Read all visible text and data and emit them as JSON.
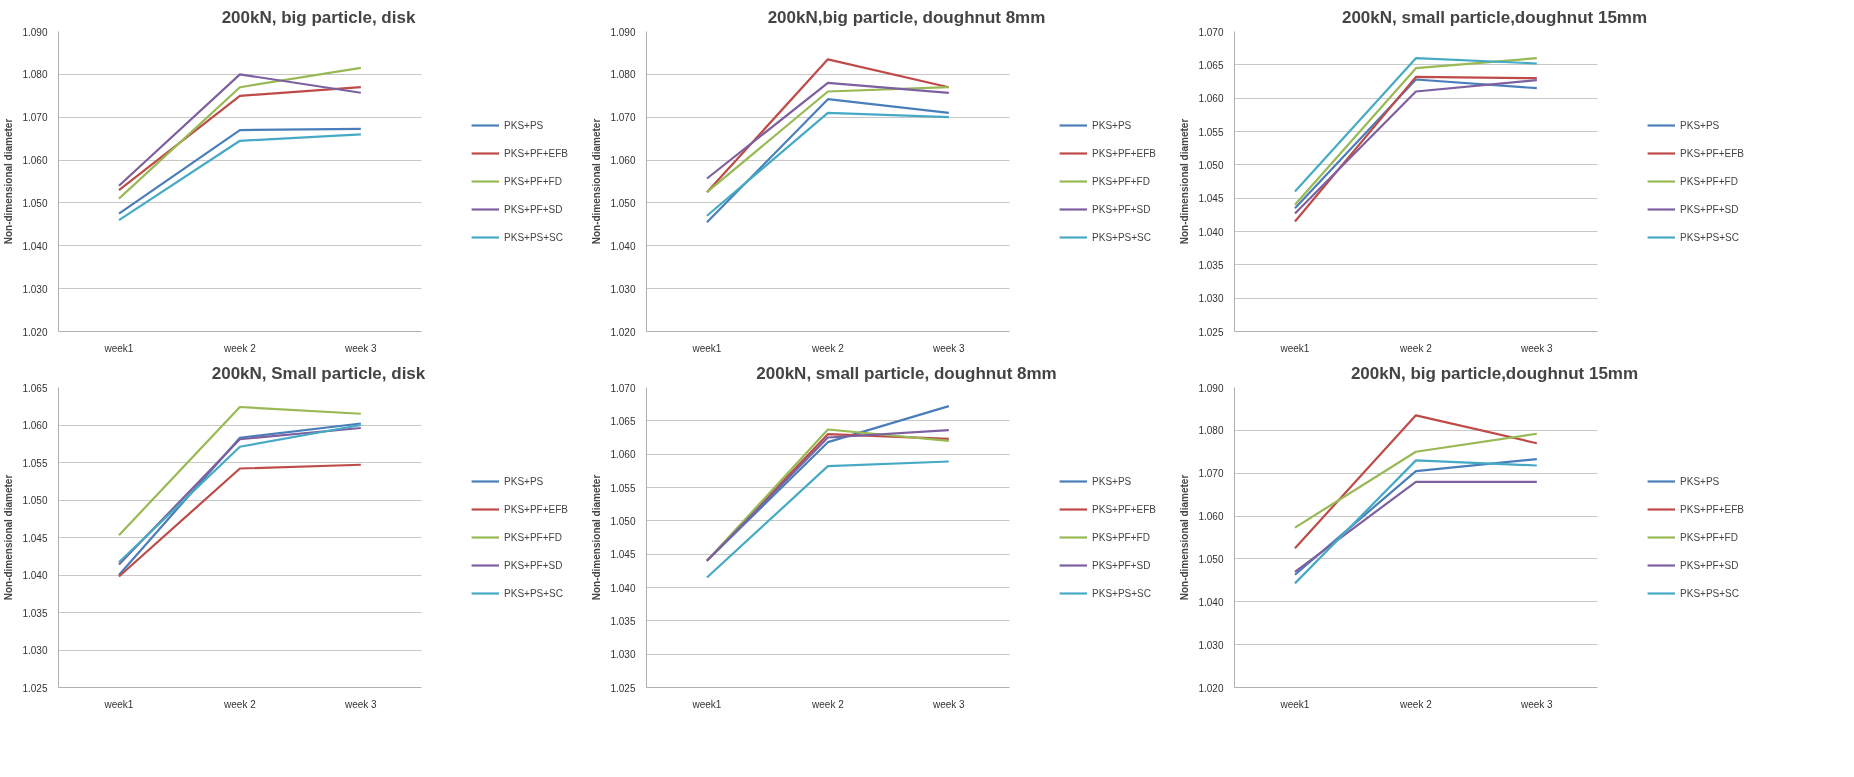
{
  "chart_data": [
    {
      "type": "line",
      "title": "200kN, big particle, disk",
      "ylabel": "Non-dimensional diameter",
      "categories": [
        "week1",
        "week 2",
        "week 3"
      ],
      "ylim": [
        1.02,
        1.09
      ],
      "yticks": [
        {
          "value": 1.02,
          "label": "1.020"
        },
        {
          "value": 1.03,
          "label": "1.030"
        },
        {
          "value": 1.04,
          "label": "1.040"
        },
        {
          "value": 1.05,
          "label": "1.050"
        },
        {
          "value": 1.06,
          "label": "1.060"
        },
        {
          "value": 1.07,
          "label": "1.070"
        },
        {
          "value": 1.08,
          "label": "1.080"
        },
        {
          "value": 1.09,
          "label": "1.090"
        }
      ],
      "grid": "y",
      "legend": "right",
      "marker": "none",
      "series": [
        {
          "name": "PKS+PS",
          "color": "#4a7ebb",
          "values": [
            1.0475,
            1.067,
            1.0673
          ]
        },
        {
          "name": "PKS+PF+EFB",
          "color": "#be4b48",
          "values": [
            1.053,
            1.075,
            1.077
          ]
        },
        {
          "name": "PKS+PF+FD",
          "color": "#98b954",
          "values": [
            1.051,
            1.077,
            1.0815
          ]
        },
        {
          "name": "PKS+PF+SD",
          "color": "#7d60a0",
          "values": [
            1.054,
            1.08,
            1.0757
          ]
        },
        {
          "name": "PKS+PS+SC",
          "color": "#46aac5",
          "values": [
            1.046,
            1.0645,
            1.066
          ]
        }
      ]
    },
    {
      "type": "line",
      "title": "200kN,big particle, doughnut 8mm",
      "ylabel": "Non-dimensional diameter",
      "categories": [
        "week1",
        "week 2",
        "week 3"
      ],
      "ylim": [
        1.02,
        1.09
      ],
      "yticks": [
        {
          "value": 1.02,
          "label": "1.020"
        },
        {
          "value": 1.03,
          "label": "1.030"
        },
        {
          "value": 1.04,
          "label": "1.040"
        },
        {
          "value": 1.05,
          "label": "1.050"
        },
        {
          "value": 1.06,
          "label": "1.060"
        },
        {
          "value": 1.07,
          "label": "1.070"
        },
        {
          "value": 1.08,
          "label": "1.080"
        },
        {
          "value": 1.09,
          "label": "1.090"
        }
      ],
      "grid": "y",
      "legend": "right",
      "marker": "none",
      "series": [
        {
          "name": "PKS+PS",
          "color": "#4a7ebb",
          "values": [
            1.0455,
            1.0742,
            1.071
          ]
        },
        {
          "name": "PKS+PF+EFB",
          "color": "#be4b48",
          "values": [
            1.0525,
            1.0835,
            1.077
          ]
        },
        {
          "name": "PKS+PF+FD",
          "color": "#98b954",
          "values": [
            1.0525,
            1.076,
            1.077
          ]
        },
        {
          "name": "PKS+PF+SD",
          "color": "#7d60a0",
          "values": [
            1.0557,
            1.078,
            1.0757
          ]
        },
        {
          "name": "PKS+PS+SC",
          "color": "#46aac5",
          "values": [
            1.047,
            1.071,
            1.07
          ]
        }
      ]
    },
    {
      "type": "line",
      "title": "200kN, small particle,doughnut 15mm",
      "ylabel": "Non-dimensional diameter",
      "categories": [
        "week1",
        "week 2",
        "week 3"
      ],
      "ylim": [
        1.025,
        1.07
      ],
      "yticks": [
        {
          "value": 1.025,
          "label": "1.025"
        },
        {
          "value": 1.03,
          "label": "1.030"
        },
        {
          "value": 1.035,
          "label": "1.035"
        },
        {
          "value": 1.04,
          "label": "1.040"
        },
        {
          "value": 1.045,
          "label": "1.045"
        },
        {
          "value": 1.05,
          "label": "1.050"
        },
        {
          "value": 1.055,
          "label": "1.055"
        },
        {
          "value": 1.06,
          "label": "1.060"
        },
        {
          "value": 1.065,
          "label": "1.065"
        },
        {
          "value": 1.07,
          "label": "1.070"
        }
      ],
      "grid": "y",
      "legend": "right",
      "marker": "none",
      "series": [
        {
          "name": "PKS+PS",
          "color": "#4a7ebb",
          "values": [
            1.0435,
            1.0628,
            1.0615
          ]
        },
        {
          "name": "PKS+PF+EFB",
          "color": "#be4b48",
          "values": [
            1.0415,
            1.0632,
            1.063
          ]
        },
        {
          "name": "PKS+PF+FD",
          "color": "#98b954",
          "values": [
            1.044,
            1.0645,
            1.066
          ]
        },
        {
          "name": "PKS+PF+SD",
          "color": "#7d60a0",
          "values": [
            1.0427,
            1.061,
            1.0627
          ]
        },
        {
          "name": "PKS+PS+SC",
          "color": "#46aac5",
          "values": [
            1.046,
            1.066,
            1.0652
          ]
        }
      ]
    },
    {
      "type": "line",
      "title": "200kN, Small particle, disk",
      "ylabel": "Non-dimensional diameter",
      "categories": [
        "week1",
        "week 2",
        "week 3"
      ],
      "ylim": [
        1.025,
        1.065
      ],
      "yticks": [
        {
          "value": 1.025,
          "label": "1.025"
        },
        {
          "value": 1.03,
          "label": "1.030"
        },
        {
          "value": 1.035,
          "label": "1.035"
        },
        {
          "value": 1.04,
          "label": "1.040"
        },
        {
          "value": 1.045,
          "label": "1.045"
        },
        {
          "value": 1.05,
          "label": "1.050"
        },
        {
          "value": 1.055,
          "label": "1.055"
        },
        {
          "value": 1.06,
          "label": "1.060"
        },
        {
          "value": 1.065,
          "label": "1.065"
        }
      ],
      "grid": "y",
      "legend": "right",
      "marker": "none",
      "series": [
        {
          "name": "PKS+PS",
          "color": "#4a7ebb",
          "values": [
            1.04,
            1.0583,
            1.0602
          ]
        },
        {
          "name": "PKS+PF+EFB",
          "color": "#be4b48",
          "values": [
            1.0398,
            1.0542,
            1.0547
          ]
        },
        {
          "name": "PKS+PF+FD",
          "color": "#98b954",
          "values": [
            1.0453,
            1.0624,
            1.0615
          ]
        },
        {
          "name": "PKS+PF+SD",
          "color": "#7d60a0",
          "values": [
            1.0414,
            1.0581,
            1.0596
          ]
        },
        {
          "name": "PKS+PS+SC",
          "color": "#46aac5",
          "values": [
            1.0417,
            1.0571,
            1.06
          ]
        }
      ]
    },
    {
      "type": "line",
      "title": "200kN, small particle, doughnut 8mm",
      "ylabel": "Non-dimensional diameter",
      "categories": [
        "week1",
        "week 2",
        "week 3"
      ],
      "ylim": [
        1.025,
        1.07
      ],
      "yticks": [
        {
          "value": 1.025,
          "label": "1.025"
        },
        {
          "value": 1.03,
          "label": "1.030"
        },
        {
          "value": 1.035,
          "label": "1.035"
        },
        {
          "value": 1.04,
          "label": "1.040"
        },
        {
          "value": 1.045,
          "label": "1.045"
        },
        {
          "value": 1.05,
          "label": "1.050"
        },
        {
          "value": 1.055,
          "label": "1.055"
        },
        {
          "value": 1.06,
          "label": "1.060"
        },
        {
          "value": 1.065,
          "label": "1.065"
        },
        {
          "value": 1.07,
          "label": "1.070"
        }
      ],
      "grid": "y",
      "legend": "right",
      "marker": "none",
      "series": [
        {
          "name": "PKS+PS",
          "color": "#4a7ebb",
          "values": [
            1.044,
            1.0618,
            1.0672
          ]
        },
        {
          "name": "PKS+PF+EFB",
          "color": "#be4b48",
          "values": [
            1.044,
            1.063,
            1.0623
          ]
        },
        {
          "name": "PKS+PF+FD",
          "color": "#98b954",
          "values": [
            1.044,
            1.0637,
            1.062
          ]
        },
        {
          "name": "PKS+PF+SD",
          "color": "#7d60a0",
          "values": [
            1.044,
            1.0625,
            1.0636
          ]
        },
        {
          "name": "PKS+PS+SC",
          "color": "#46aac5",
          "values": [
            1.0415,
            1.0582,
            1.0589
          ]
        }
      ]
    },
    {
      "type": "line",
      "title": "200kN, big particle,doughnut 15mm",
      "ylabel": "Non-dimensional diameter",
      "categories": [
        "week1",
        "week 2",
        "week 3"
      ],
      "ylim": [
        1.02,
        1.09
      ],
      "yticks": [
        {
          "value": 1.02,
          "label": "1.020"
        },
        {
          "value": 1.03,
          "label": "1.030"
        },
        {
          "value": 1.04,
          "label": "1.040"
        },
        {
          "value": 1.05,
          "label": "1.050"
        },
        {
          "value": 1.06,
          "label": "1.060"
        },
        {
          "value": 1.07,
          "label": "1.070"
        },
        {
          "value": 1.08,
          "label": "1.080"
        },
        {
          "value": 1.09,
          "label": "1.090"
        }
      ],
      "grid": "y",
      "legend": "right",
      "marker": "none",
      "series": [
        {
          "name": "PKS+PS",
          "color": "#4a7ebb",
          "values": [
            1.0463,
            1.0705,
            1.0733
          ]
        },
        {
          "name": "PKS+PF+EFB",
          "color": "#be4b48",
          "values": [
            1.0525,
            1.0835,
            1.077
          ]
        },
        {
          "name": "PKS+PF+FD",
          "color": "#98b954",
          "values": [
            1.0573,
            1.075,
            1.0792
          ]
        },
        {
          "name": "PKS+PF+SD",
          "color": "#7d60a0",
          "values": [
            1.047,
            1.068,
            1.068
          ]
        },
        {
          "name": "PKS+PS+SC",
          "color": "#46aac5",
          "values": [
            1.0443,
            1.073,
            1.0718
          ]
        }
      ]
    }
  ]
}
